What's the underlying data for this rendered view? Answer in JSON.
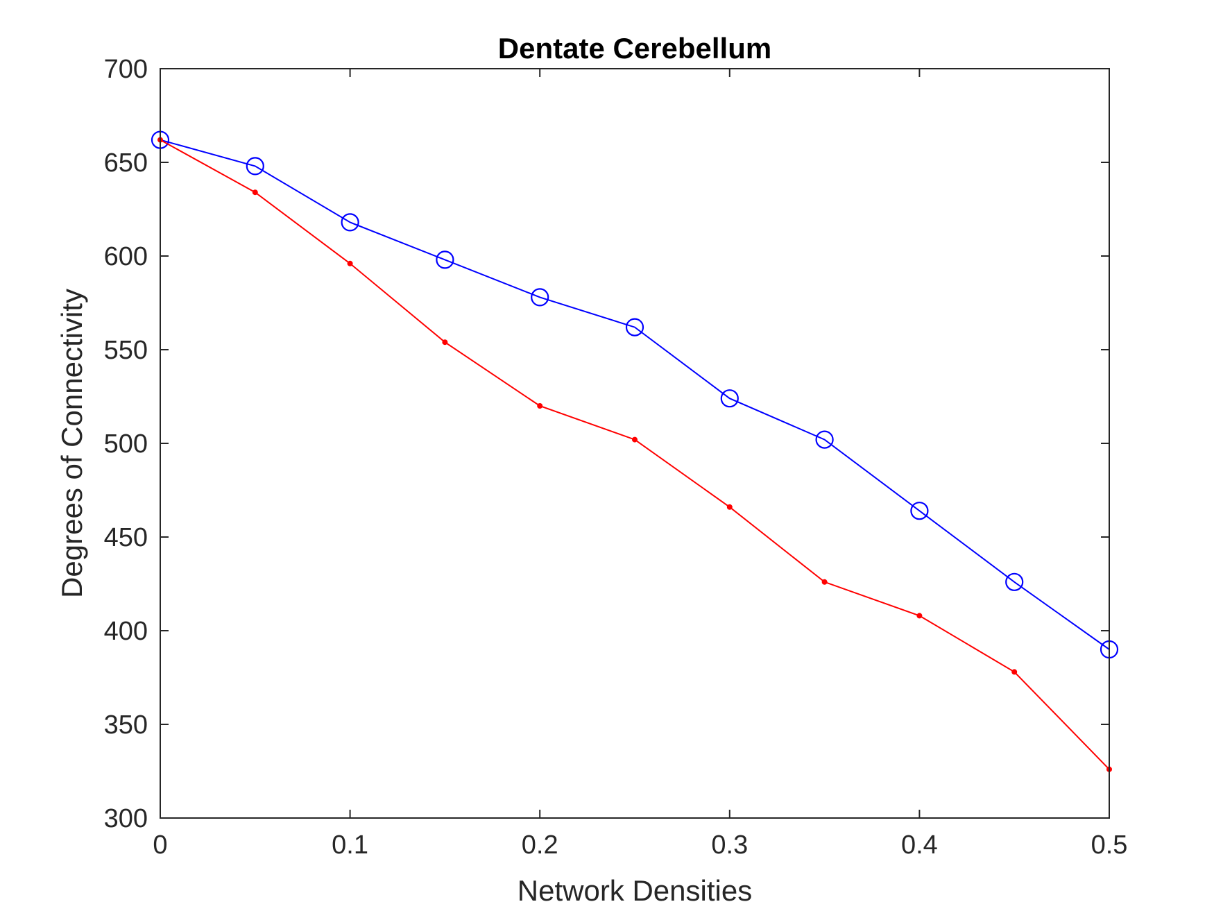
{
  "chart_data": {
    "type": "line",
    "title": "Dentate Cerebellum",
    "xlabel": "Network Densities",
    "ylabel": "Degrees of Connectivity",
    "xlim": [
      0,
      0.5
    ],
    "ylim": [
      300,
      700
    ],
    "grid": false,
    "x_ticks": [
      "0",
      "0.1",
      "0.2",
      "0.3",
      "0.4",
      "0.5"
    ],
    "y_ticks": [
      "300",
      "350",
      "400",
      "450",
      "500",
      "550",
      "600",
      "650",
      "700"
    ],
    "x": [
      0,
      0.05,
      0.1,
      0.15,
      0.2,
      0.25,
      0.3,
      0.35,
      0.4,
      0.45,
      0.5
    ],
    "series": [
      {
        "color": "#0000ff",
        "marker": "circle",
        "values": [
          662,
          648,
          618,
          598,
          578,
          562,
          524,
          502,
          464,
          426,
          390
        ]
      },
      {
        "color": "#ff0000",
        "marker": "dot",
        "values": [
          662,
          634,
          596,
          554,
          520,
          502,
          466,
          426,
          408,
          378,
          326
        ]
      }
    ]
  }
}
